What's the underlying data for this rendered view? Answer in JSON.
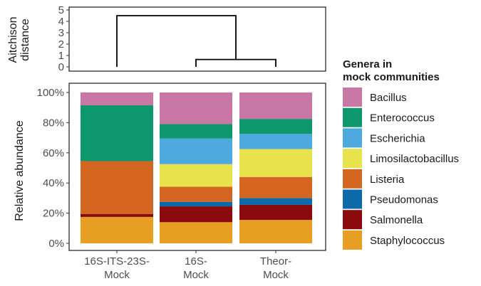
{
  "chart_data": [
    {
      "type": "dendrogram",
      "ylabel": [
        "Aitchison",
        "distance"
      ],
      "ylim": [
        0,
        5
      ],
      "yticks": [
        "0",
        "1",
        "2",
        "3",
        "4",
        "5"
      ],
      "leaves": [
        "16S-ITS-23S-Mock",
        "16S-Mock",
        "Theor-Mock"
      ],
      "merges": [
        {
          "left": 1,
          "right": 2,
          "height": 0.65
        },
        {
          "left": 0,
          "right": "merge-0",
          "height": 4.5
        }
      ]
    },
    {
      "type": "stacked-bar",
      "ylabel": "Relative abundance",
      "ylim": [
        0,
        100
      ],
      "yticks": [
        "0%",
        "20%",
        "40%",
        "60%",
        "80%",
        "100%"
      ],
      "categories": [
        [
          "16S-ITS-23S-",
          "Mock"
        ],
        [
          "16S-",
          "Mock"
        ],
        [
          "Theor-",
          "Mock"
        ]
      ],
      "legend_title": [
        "Genera in",
        "mock communities"
      ],
      "legend_position": "right",
      "series": [
        {
          "name": "Staphylococcus",
          "color": "#E69F22",
          "values": [
            17.5,
            14,
            15.5
          ]
        },
        {
          "name": "Salmonella",
          "color": "#8B0A0E",
          "values": [
            2,
            10.5,
            10
          ]
        },
        {
          "name": "Pseudomonas",
          "color": "#0D6AA8",
          "values": [
            0,
            3,
            4.5
          ]
        },
        {
          "name": "Listeria",
          "color": "#D56621",
          "values": [
            35,
            10,
            14
          ]
        },
        {
          "name": "Limosilactobacillus",
          "color": "#E8E34D",
          "values": [
            0,
            15,
            18.5
          ]
        },
        {
          "name": "Escherichia",
          "color": "#4EA9DE",
          "values": [
            0,
            17,
            10
          ]
        },
        {
          "name": "Enterococcus",
          "color": "#0E976C",
          "values": [
            37,
            9.5,
            10
          ]
        },
        {
          "name": "Bacillus",
          "color": "#C978A6",
          "values": [
            8.5,
            21,
            17.5
          ]
        }
      ]
    }
  ]
}
